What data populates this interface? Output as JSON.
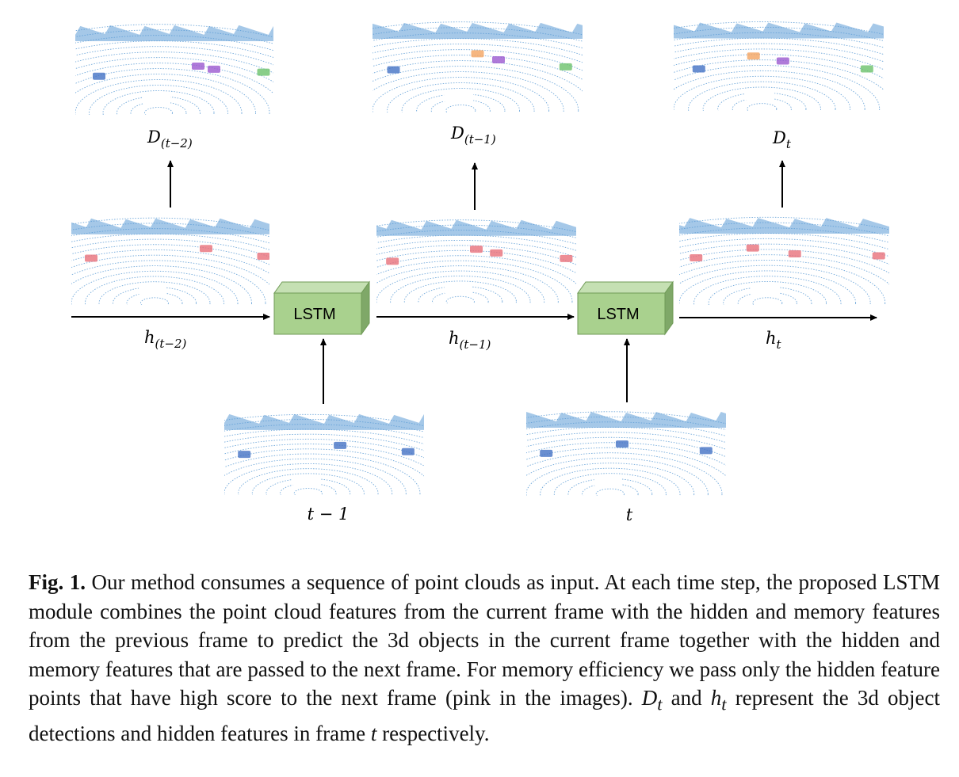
{
  "diagram": {
    "modules": [
      {
        "id": "lstm-1",
        "label": "LSTM"
      },
      {
        "id": "lstm-2",
        "label": "LSTM"
      }
    ],
    "detections": [
      {
        "id": "d1",
        "main": "D",
        "sub": "(t−2)"
      },
      {
        "id": "d2",
        "main": "D",
        "sub": "(t−1)"
      },
      {
        "id": "d3",
        "main": "D",
        "sub": "t"
      }
    ],
    "hidden": [
      {
        "id": "h1",
        "main": "h",
        "sub": "(t−2)"
      },
      {
        "id": "h2",
        "main": "h",
        "sub": "(t−1)"
      },
      {
        "id": "h3",
        "main": "h",
        "sub": "t"
      }
    ],
    "inputs": [
      {
        "id": "in1",
        "label": "t − 1"
      },
      {
        "id": "in2",
        "label": "t"
      }
    ],
    "colors": {
      "lstm_front": "#a9d18e",
      "lstm_top": "#c5e0b3",
      "lstm_side": "#7fa868",
      "lstm_edge": "#6f9a56",
      "pointcloud": "#5b9bd5",
      "detection_blue": "#4472c4",
      "detection_orange": "#f4a460",
      "detection_purple": "#9b59d0",
      "detection_green": "#6bc26b",
      "hidden_pink": "#e8707a"
    }
  },
  "caption": {
    "label": "Fig. 1.",
    "parts": [
      " Our method consumes a sequence of point clouds as input. At each time step, the proposed LSTM module combines the point cloud features from the current frame with the hidden and memory features from the previous frame to predict the 3d objects in the current frame together with the hidden and memory features that are passed to the next frame. For memory efficiency we pass only the hidden feature points that have high score to the next frame (pink in the images). ",
      "D",
      "t",
      " and ",
      "h",
      "t",
      " represent the 3d object detections and hidden features in frame ",
      "t",
      " respectively."
    ]
  }
}
